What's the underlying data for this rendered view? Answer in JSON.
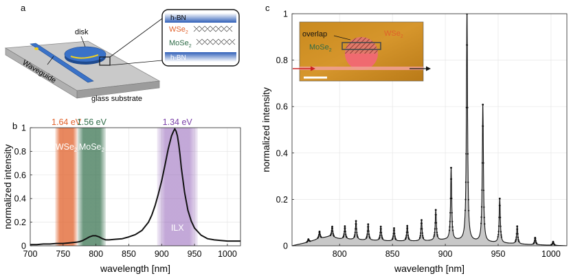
{
  "colors": {
    "wse2": "#e0602a",
    "mose2": "#2e6b47",
    "ilx": "#7a3fa8",
    "disk": "#3a72c8",
    "hbn": "#2f5fb8",
    "spectrum": "#111111",
    "fill": "#c8c8c8",
    "laser": "#cc1f1f"
  },
  "panels": {
    "a": {
      "label": "a",
      "disk_label": "disk",
      "waveguide_label": "Waveguide",
      "substrate_label": "glass substrate",
      "stack": {
        "top_layer": "h-BN",
        "wse2_label": "WSe",
        "wse2_sub": "2",
        "mose2_label": "MoSe",
        "mose2_sub": "2",
        "bottom_layer": "h-BN"
      }
    },
    "b": {
      "label": "b"
    },
    "c": {
      "label": "c",
      "inset": {
        "overlap_label": "overlap",
        "wse2_label": "WSe",
        "wse2_sub": "2",
        "mose2_label": "MoSe",
        "mose2_sub": "2"
      }
    }
  },
  "chart_data": [
    {
      "panel": "b",
      "type": "line",
      "title": "",
      "xlabel": "wavelength [nm]",
      "ylabel": "normalized intensity",
      "xlim": [
        700,
        1020
      ],
      "ylim": [
        0,
        1
      ],
      "xticks": [
        700,
        750,
        800,
        850,
        900,
        950,
        1000
      ],
      "xtick_labels": [
        "700",
        "750",
        "800",
        "850",
        "900",
        "950",
        "1000"
      ],
      "yticks": [
        0,
        0.2,
        0.4,
        0.6,
        0.8,
        1
      ],
      "ytick_labels": [
        "0",
        "0.2",
        "0.4",
        "0.6",
        "0.8",
        "1"
      ],
      "grid": true,
      "bands": [
        {
          "name": "WSe2",
          "label": "WSe",
          "sub": "2",
          "energy": "1.64 eV",
          "xmin": 738,
          "xmax": 772,
          "color": "#e0602a",
          "series": "wse2"
        },
        {
          "name": "MoSe2",
          "label": "MoSe",
          "sub": "2",
          "energy": "1.56 eV",
          "xmin": 772,
          "xmax": 815,
          "color": "#2e6b47",
          "series": "mose2"
        },
        {
          "name": "ILX",
          "label": "ILX",
          "sub": "",
          "energy": "1.34 eV",
          "xmin": 893,
          "xmax": 955,
          "color": "#7a3fa8",
          "series": "ilx"
        }
      ],
      "x": [
        700,
        710,
        720,
        730,
        740,
        750,
        760,
        770,
        775,
        780,
        785,
        790,
        795,
        800,
        805,
        810,
        815,
        820,
        830,
        840,
        850,
        860,
        870,
        880,
        885,
        890,
        895,
        900,
        905,
        910,
        915,
        918,
        920,
        922,
        924,
        926,
        928,
        930,
        935,
        940,
        945,
        950,
        960,
        970,
        980,
        990,
        1000,
        1010,
        1020
      ],
      "y": [
        0.01,
        0.01,
        0.015,
        0.015,
        0.02,
        0.02,
        0.025,
        0.03,
        0.035,
        0.045,
        0.06,
        0.075,
        0.085,
        0.085,
        0.075,
        0.06,
        0.05,
        0.05,
        0.055,
        0.06,
        0.075,
        0.095,
        0.13,
        0.2,
        0.26,
        0.34,
        0.44,
        0.55,
        0.68,
        0.82,
        0.93,
        0.97,
        0.99,
        0.97,
        0.93,
        0.86,
        0.77,
        0.66,
        0.45,
        0.3,
        0.21,
        0.15,
        0.09,
        0.06,
        0.05,
        0.045,
        0.04,
        0.04,
        0.04
      ]
    },
    {
      "panel": "c",
      "type": "line",
      "title": "",
      "xlabel": "wavelength [nm]",
      "ylabel": "normalized intensity",
      "xlim": [
        755,
        1015
      ],
      "ylim": [
        0,
        1
      ],
      "xticks": [
        800,
        850,
        900,
        950,
        1000
      ],
      "xtick_labels": [
        "800",
        "850",
        "900",
        "950",
        "1000"
      ],
      "yticks": [
        0,
        0.2,
        0.4,
        0.6,
        0.8,
        1
      ],
      "ytick_labels": [
        "0",
        "0.2",
        "0.4",
        "0.6",
        "0.8",
        "1"
      ],
      "grid": true,
      "baseline": [
        [
          755,
          0.0
        ],
        [
          770,
          0.015
        ],
        [
          780,
          0.03
        ],
        [
          790,
          0.04
        ],
        [
          800,
          0.03
        ],
        [
          820,
          0.025
        ],
        [
          850,
          0.02
        ],
        [
          880,
          0.02
        ],
        [
          900,
          0.025
        ],
        [
          920,
          0.02
        ],
        [
          950,
          0.012
        ],
        [
          980,
          0.005
        ],
        [
          1015,
          0.0
        ]
      ],
      "peak_width_nm": 1.3,
      "peaks": [
        {
          "x": 770.5,
          "y": 0.012
        },
        {
          "x": 781,
          "y": 0.03
        },
        {
          "x": 793,
          "y": 0.045
        },
        {
          "x": 805,
          "y": 0.055
        },
        {
          "x": 815.5,
          "y": 0.08
        },
        {
          "x": 827,
          "y": 0.068
        },
        {
          "x": 839,
          "y": 0.06
        },
        {
          "x": 851.5,
          "y": 0.055
        },
        {
          "x": 864,
          "y": 0.065
        },
        {
          "x": 877.5,
          "y": 0.09
        },
        {
          "x": 891,
          "y": 0.13
        },
        {
          "x": 905.5,
          "y": 0.31
        },
        {
          "x": 920.5,
          "y": 1.0
        },
        {
          "x": 935.5,
          "y": 0.59
        },
        {
          "x": 951.5,
          "y": 0.19
        },
        {
          "x": 968,
          "y": 0.075
        },
        {
          "x": 985,
          "y": 0.03
        },
        {
          "x": 1002,
          "y": 0.015
        }
      ]
    }
  ]
}
